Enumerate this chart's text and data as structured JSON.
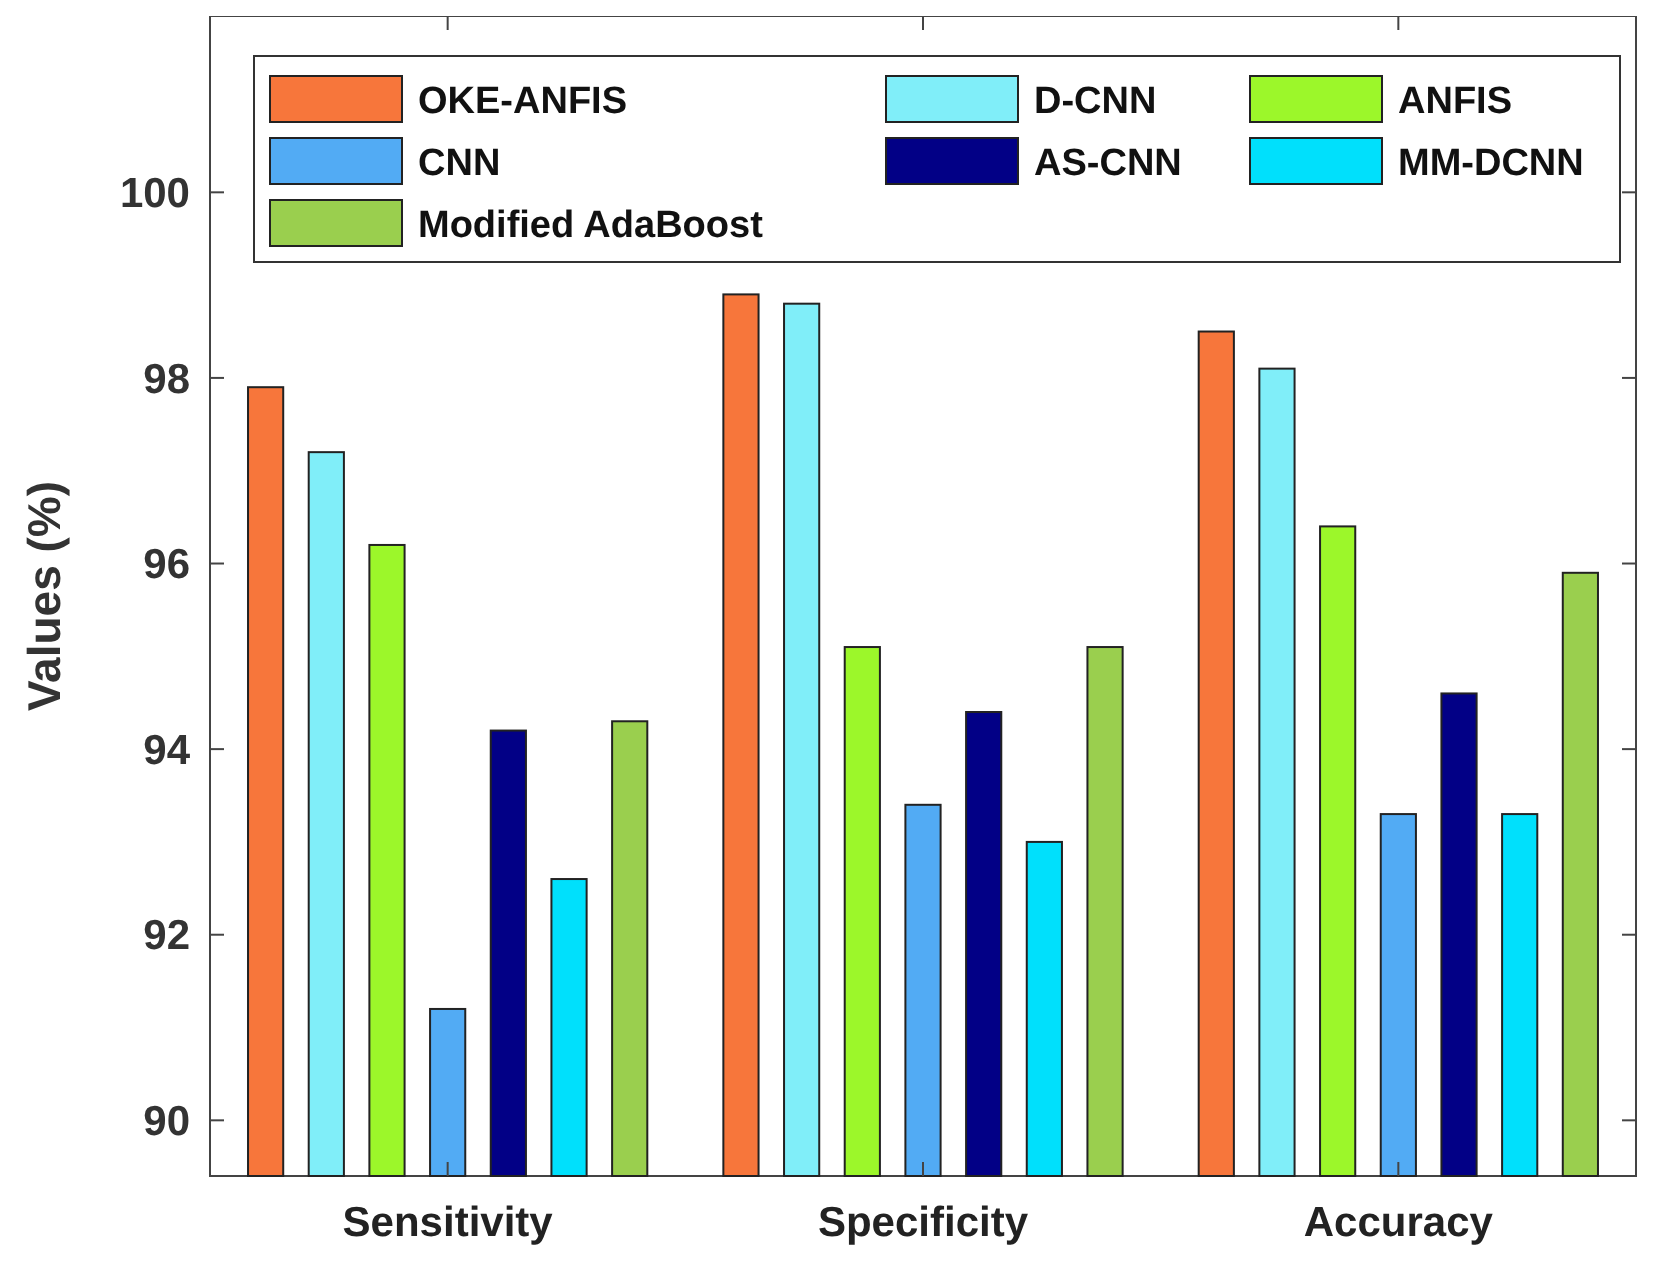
{
  "chart_data": {
    "type": "bar",
    "ylabel": "Values (%)",
    "categories": [
      "Sensitivity",
      "Specificity",
      "Accuracy"
    ],
    "series": [
      {
        "name": "OKE-ANFIS",
        "color": "#f7763b",
        "values": [
          97.9,
          98.9,
          98.5
        ]
      },
      {
        "name": "D-CNN",
        "color": "#80eef9",
        "values": [
          97.2,
          98.8,
          98.1
        ]
      },
      {
        "name": "ANFIS",
        "color": "#9cf72a",
        "values": [
          96.2,
          95.1,
          96.4
        ]
      },
      {
        "name": "CNN",
        "color": "#52abf4",
        "values": [
          91.2,
          93.4,
          93.3
        ]
      },
      {
        "name": "AS-CNN",
        "color": "#020086",
        "values": [
          94.2,
          94.4,
          94.6
        ]
      },
      {
        "name": "MM-DCNN",
        "color": "#00e0fc",
        "values": [
          92.6,
          93.0,
          93.3
        ]
      },
      {
        "name": "Modified AdaBoost",
        "color": "#9acf4e",
        "values": [
          94.3,
          95.1,
          95.9
        ]
      }
    ],
    "ylim": [
      89.4,
      101.9
    ],
    "yticks": [
      90,
      92,
      94,
      96,
      98,
      100
    ],
    "grid": false,
    "legend": "top"
  }
}
